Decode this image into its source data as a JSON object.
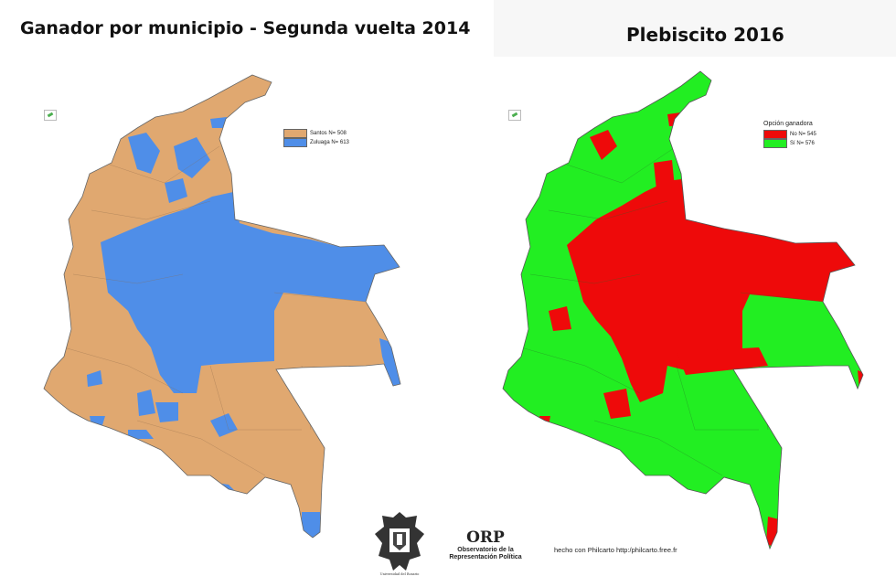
{
  "maps": {
    "left": {
      "title": "Ganador por municipio - Segunda vuelta 2014",
      "legend": [
        {
          "label": "Santos N= 508",
          "color": "#e0a870"
        },
        {
          "label": "Zuluaga N= 613",
          "color": "#4f8ee8"
        }
      ]
    },
    "right": {
      "title": "Plebiscito 2016",
      "legend_title": "Opción ganadora",
      "legend": [
        {
          "label": "No N= 545",
          "color": "#ee0a0a"
        },
        {
          "label": "Sí N= 576",
          "color": "#22ee22"
        }
      ]
    }
  },
  "footer": {
    "university_logo_text": "Universidad del Rosario",
    "orp_mark": "ORP",
    "orp_line1": "Observatorio de la",
    "orp_line2": "Representación Política",
    "credit": "hecho con Philcarto http:/philcarto.free.fr"
  },
  "icons": {
    "north_arrow": "north-arrow-icon",
    "university_crest": "crest-icon"
  }
}
